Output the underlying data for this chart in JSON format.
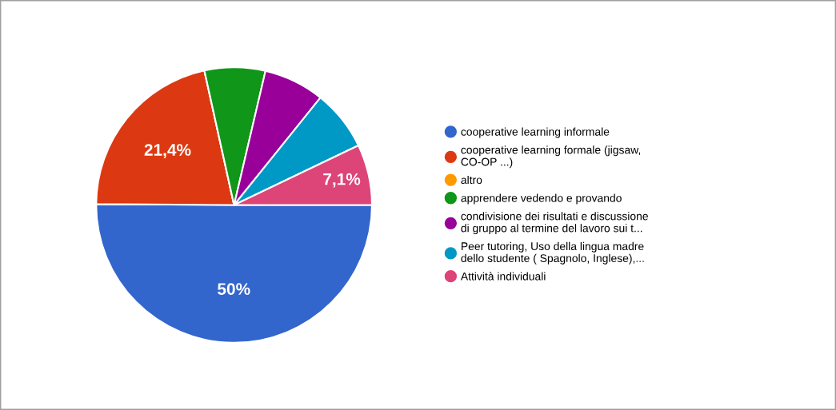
{
  "chart_data": {
    "type": "pie",
    "categories": [
      "cooperative learning informale",
      "cooperative learning formale (jigsaw,\nCO-OP ...)",
      "altro",
      "apprendere vedendo e provando",
      "condivisione dei risultati e discussione\ndi gruppo al termine del lavoro sui t...",
      "Peer tutoring, Uso della lingua madre\ndello studente ( Spagnolo, Inglese),...",
      "Attività individuali"
    ],
    "values": [
      50,
      21.4,
      0,
      7.1,
      7.1,
      7.1,
      7.1
    ],
    "value_labels": [
      "50%",
      "21,4%",
      null,
      null,
      null,
      null,
      "7,1%"
    ],
    "colors": [
      "#3366cc",
      "#dc3912",
      "#ff9900",
      "#109618",
      "#990099",
      "#0099c6",
      "#dd4477"
    ],
    "legend": "right"
  }
}
